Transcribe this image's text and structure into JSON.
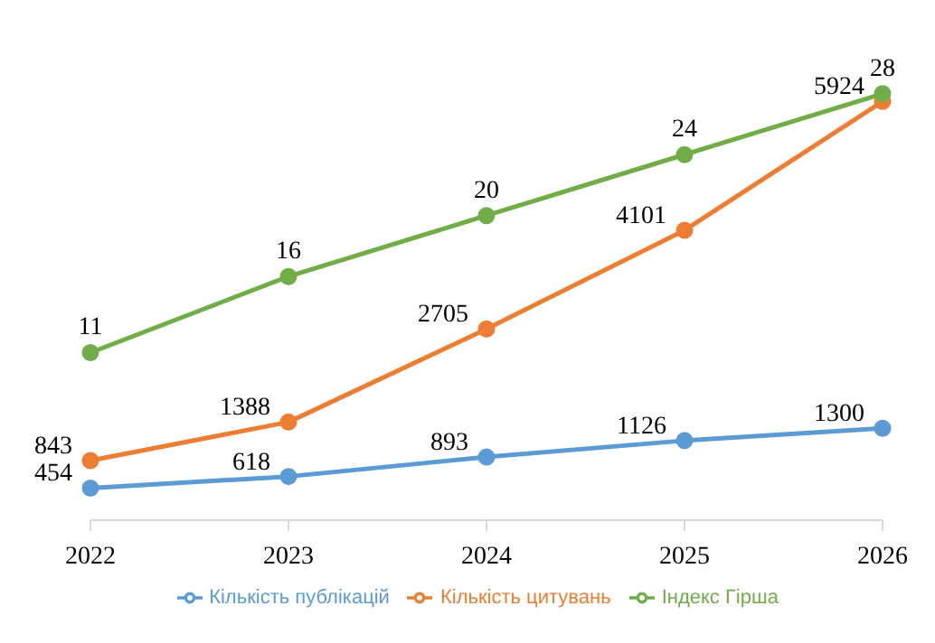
{
  "chart_data": {
    "type": "line",
    "categories": [
      "2022",
      "2023",
      "2024",
      "2025",
      "2026"
    ],
    "series": [
      {
        "name": "Кількість публікацій",
        "color": "#5b9bd5",
        "values": [
          454,
          618,
          893,
          1126,
          1300
        ]
      },
      {
        "name": "Кількість цитувань",
        "color": "#ed7d31",
        "values": [
          843,
          1388,
          2705,
          4101,
          5924
        ]
      },
      {
        "name": "Індекс Гірша",
        "color": "#70ad47",
        "values": [
          11,
          16,
          20,
          24,
          28
        ],
        "axis": "y2"
      }
    ],
    "tick_labels": "x",
    "data_labels": true,
    "legend": "bottom",
    "marker": "circle",
    "line_style": "solid"
  }
}
